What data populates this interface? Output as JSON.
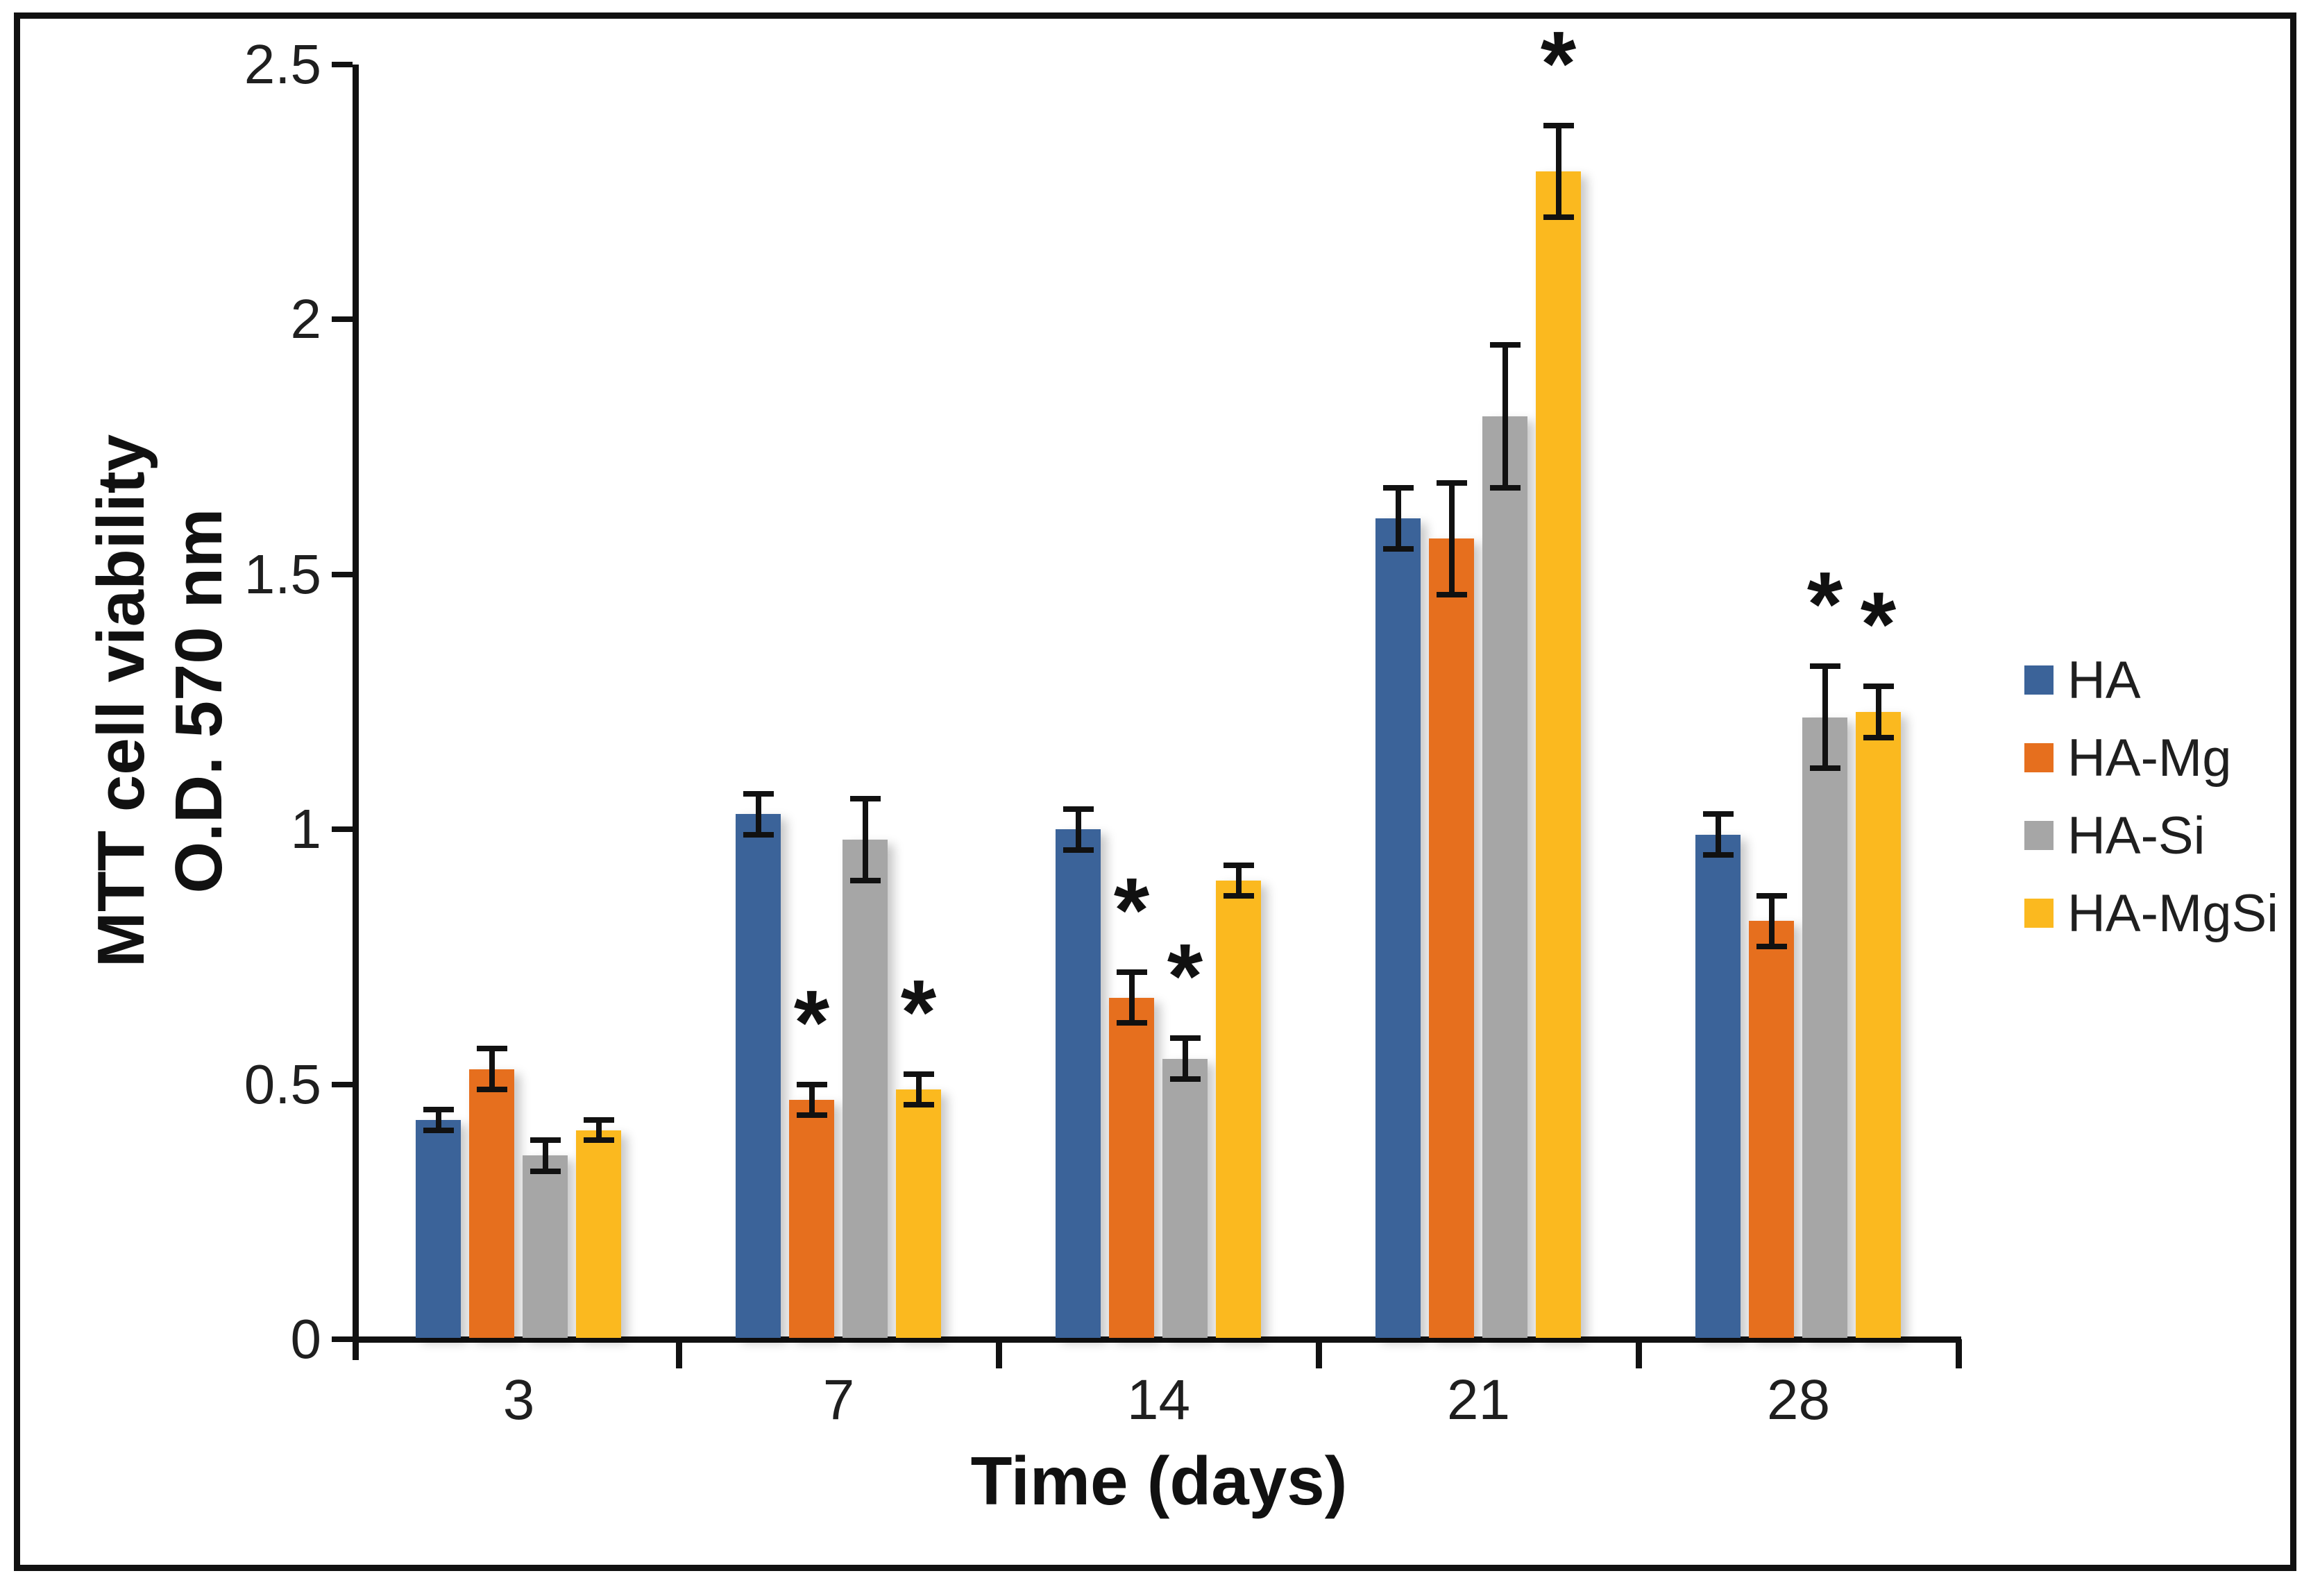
{
  "chart_data": {
    "type": "bar",
    "title": "",
    "xlabel": "Time (days)",
    "ylabel_lines": [
      "MTT cell viability",
      "O.D. 570 nm"
    ],
    "categories": [
      "3",
      "7",
      "14",
      "21",
      "28"
    ],
    "series": [
      {
        "name": "HA",
        "color": "#3B6399",
        "values": [
          0.43,
          1.03,
          1.0,
          1.61,
          0.99
        ],
        "errors": [
          0.02,
          0.04,
          0.04,
          0.06,
          0.04
        ],
        "significant": [
          false,
          false,
          false,
          false,
          false
        ]
      },
      {
        "name": "HA-Mg",
        "color": "#E66F1E",
        "values": [
          0.53,
          0.47,
          0.67,
          1.57,
          0.82
        ],
        "errors": [
          0.04,
          0.03,
          0.05,
          0.11,
          0.05
        ],
        "significant": [
          false,
          true,
          true,
          false,
          false
        ]
      },
      {
        "name": "HA-Si",
        "color": "#A6A6A6",
        "values": [
          0.36,
          0.98,
          0.55,
          1.81,
          1.22
        ],
        "errors": [
          0.03,
          0.08,
          0.04,
          0.14,
          0.1
        ],
        "significant": [
          false,
          false,
          true,
          false,
          true
        ]
      },
      {
        "name": "HA-MgSi",
        "color": "#FBB91F",
        "values": [
          0.41,
          0.49,
          0.9,
          2.29,
          1.23
        ],
        "errors": [
          0.02,
          0.03,
          0.03,
          0.09,
          0.05
        ],
        "significant": [
          false,
          true,
          false,
          true,
          true
        ]
      }
    ],
    "y_ticks": [
      0,
      0.5,
      1,
      1.5,
      2,
      2.5
    ],
    "y_tick_labels": [
      "0",
      "0.5",
      "1",
      "1.5",
      "2",
      "2.5"
    ],
    "ylim": [
      0,
      2.5
    ],
    "significance_marker": "*",
    "legend_position": "right",
    "grid": false
  }
}
